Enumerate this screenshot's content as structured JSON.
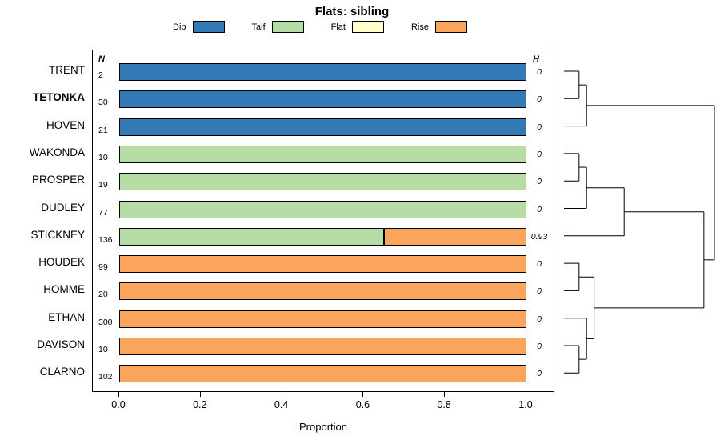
{
  "title": "Flats: sibling",
  "xlabel": "Proportion",
  "n_header": "N",
  "h_header": "H",
  "chart_data": {
    "type": "bar",
    "orientation": "horizontal",
    "stacked": true,
    "title": "Flats: sibling",
    "xlabel": "Proportion",
    "xlim": [
      0,
      1
    ],
    "xticks": [
      "0.0",
      "0.2",
      "0.4",
      "0.6",
      "0.8",
      "1.0"
    ],
    "grid": false,
    "legend_position": "top",
    "categories": [
      "TRENT",
      "TETONKA",
      "HOVEN",
      "WAKONDA",
      "PROSPER",
      "DUDLEY",
      "STICKNEY",
      "HOUDEK",
      "HOMME",
      "ETHAN",
      "DAVISON",
      "CLARNO"
    ],
    "bold_categories": [
      "TETONKA"
    ],
    "n": [
      "2",
      "30",
      "21",
      "10",
      "19",
      "77",
      "136",
      "99",
      "20",
      "300",
      "10",
      "102"
    ],
    "h": [
      "0",
      "0",
      "0",
      "0",
      "0",
      "0",
      "0.93",
      "0",
      "0",
      "0",
      "0",
      "0"
    ],
    "series": [
      {
        "name": "Dip",
        "color": "#3379b5",
        "values": [
          1,
          1,
          1,
          0,
          0,
          0,
          0,
          0,
          0,
          0,
          0,
          0
        ]
      },
      {
        "name": "Talf",
        "color": "#b5dca5",
        "values": [
          0,
          0,
          0,
          1,
          1,
          1,
          0.65,
          0,
          0,
          0,
          0,
          0
        ]
      },
      {
        "name": "Flat",
        "color": "#ffffcc",
        "values": [
          0,
          0,
          0,
          0,
          0,
          0,
          0,
          0,
          0,
          0,
          0,
          0
        ]
      },
      {
        "name": "Rise",
        "color": "#fba45c",
        "values": [
          0,
          0,
          0,
          0,
          0,
          0,
          0.35,
          1,
          1,
          1,
          1,
          1
        ]
      }
    ],
    "dendrogram": {
      "leaves": [
        "TRENT",
        "TETONKA",
        "HOVEN",
        "WAKONDA",
        "PROSPER",
        "DUDLEY",
        "STICKNEY",
        "HOUDEK",
        "HOMME",
        "ETHAN",
        "DAVISON",
        "CLARNO"
      ],
      "merges": [
        {
          "id": "A",
          "children": [
            "L0",
            "L1"
          ],
          "height": 0.1
        },
        {
          "id": "B",
          "children": [
            "A",
            "L2"
          ],
          "height": 0.15
        },
        {
          "id": "C",
          "children": [
            "L3",
            "L4"
          ],
          "height": 0.1
        },
        {
          "id": "D",
          "children": [
            "C",
            "L5"
          ],
          "height": 0.15
        },
        {
          "id": "E",
          "children": [
            "D",
            "L6"
          ],
          "height": 0.4
        },
        {
          "id": "F",
          "children": [
            "L7",
            "L8"
          ],
          "height": 0.1
        },
        {
          "id": "G",
          "children": [
            "L10",
            "L11"
          ],
          "height": 0.1
        },
        {
          "id": "H",
          "children": [
            "L9",
            "G"
          ],
          "height": 0.15
        },
        {
          "id": "I",
          "children": [
            "F",
            "H"
          ],
          "height": 0.2
        },
        {
          "id": "J",
          "children": [
            "E",
            "I"
          ],
          "height": 0.93
        },
        {
          "id": "K",
          "children": [
            "B",
            "J"
          ],
          "height": 1.0
        }
      ]
    }
  }
}
